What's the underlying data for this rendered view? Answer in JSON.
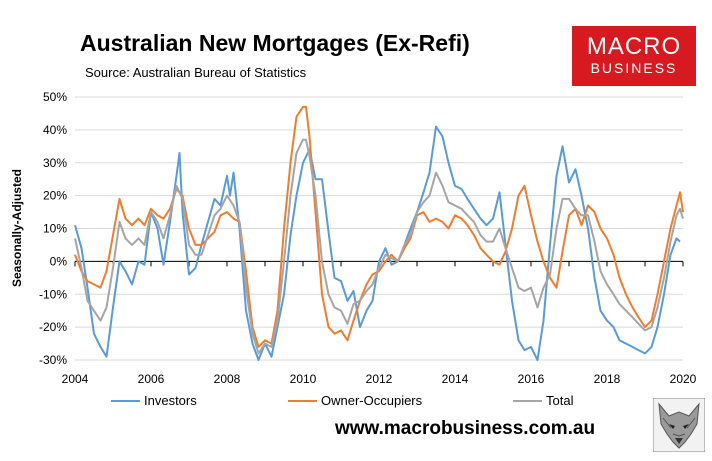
{
  "header": {
    "title": "Australian New Mortgages (Ex-Refi)",
    "subtitle": "Source: Australian Bureau of Statistics"
  },
  "logo": {
    "line1": "MACRO",
    "line2": "BUSINESS"
  },
  "footer": {
    "website": "www.macrobusiness.com.au"
  },
  "colors": {
    "investors": "#5b9bd5",
    "owner_occupiers": "#ed7d31",
    "total": "#a5a5a5",
    "logo_red": "#d71920"
  },
  "icons": {
    "wolf": "wolf-logo-icon"
  },
  "chart_data": {
    "type": "line",
    "title": "Australian New Mortgages (Ex-Refi)",
    "subtitle": "Source: Australian Bureau of Statistics",
    "xlabel": "",
    "ylabel": "Seasonally-Adjusted",
    "xlim": [
      2004,
      2020
    ],
    "ylim": [
      -30,
      50
    ],
    "x_ticks": [
      2004,
      2006,
      2008,
      2010,
      2012,
      2014,
      2016,
      2018,
      2020
    ],
    "y_ticks": [
      -30,
      -20,
      -10,
      0,
      10,
      20,
      30,
      40,
      50
    ],
    "x_tick_labels": [
      "2004",
      "2006",
      "2008",
      "2010",
      "2012",
      "2014",
      "2016",
      "2018",
      "2020"
    ],
    "y_tick_labels": [
      "-30%",
      "-20%",
      "-10%",
      "0%",
      "10%",
      "20%",
      "30%",
      "40%",
      "50%"
    ],
    "grid": "horizontal",
    "legend": "bottom",
    "series": [
      {
        "name": "Investors",
        "color": "#5b9bd5",
        "points": [
          [
            2004.0,
            11
          ],
          [
            2004.17,
            4
          ],
          [
            2004.33,
            -8
          ],
          [
            2004.5,
            -22
          ],
          [
            2004.67,
            -26
          ],
          [
            2004.83,
            -29
          ],
          [
            2005.0,
            -14
          ],
          [
            2005.17,
            0
          ],
          [
            2005.33,
            -3
          ],
          [
            2005.5,
            -7
          ],
          [
            2005.67,
            0
          ],
          [
            2005.83,
            -1
          ],
          [
            2006.0,
            15
          ],
          [
            2006.17,
            10
          ],
          [
            2006.33,
            -1
          ],
          [
            2006.5,
            12
          ],
          [
            2006.67,
            26
          ],
          [
            2006.75,
            33
          ],
          [
            2006.83,
            15
          ],
          [
            2007.0,
            -4
          ],
          [
            2007.17,
            -2
          ],
          [
            2007.33,
            5
          ],
          [
            2007.5,
            12
          ],
          [
            2007.67,
            19
          ],
          [
            2007.83,
            17
          ],
          [
            2008.0,
            26
          ],
          [
            2008.08,
            20
          ],
          [
            2008.17,
            27
          ],
          [
            2008.33,
            10
          ],
          [
            2008.5,
            -15
          ],
          [
            2008.67,
            -25
          ],
          [
            2008.83,
            -30
          ],
          [
            2009.0,
            -25
          ],
          [
            2009.17,
            -29
          ],
          [
            2009.33,
            -20
          ],
          [
            2009.5,
            -10
          ],
          [
            2009.67,
            8
          ],
          [
            2009.83,
            20
          ],
          [
            2010.0,
            30
          ],
          [
            2010.17,
            34
          ],
          [
            2010.33,
            25
          ],
          [
            2010.5,
            25
          ],
          [
            2010.67,
            9
          ],
          [
            2010.83,
            -5
          ],
          [
            2011.0,
            -6
          ],
          [
            2011.17,
            -12
          ],
          [
            2011.33,
            -9
          ],
          [
            2011.5,
            -20
          ],
          [
            2011.67,
            -15
          ],
          [
            2011.83,
            -12
          ],
          [
            2012.0,
            0
          ],
          [
            2012.17,
            4
          ],
          [
            2012.33,
            -1
          ],
          [
            2012.5,
            0
          ],
          [
            2012.67,
            5
          ],
          [
            2012.83,
            10
          ],
          [
            2013.0,
            15
          ],
          [
            2013.17,
            21
          ],
          [
            2013.33,
            27
          ],
          [
            2013.5,
            41
          ],
          [
            2013.67,
            38
          ],
          [
            2013.83,
            30
          ],
          [
            2014.0,
            23
          ],
          [
            2014.17,
            22
          ],
          [
            2014.33,
            19
          ],
          [
            2014.5,
            16
          ],
          [
            2014.67,
            13
          ],
          [
            2014.83,
            11
          ],
          [
            2015.0,
            13
          ],
          [
            2015.17,
            21
          ],
          [
            2015.33,
            5
          ],
          [
            2015.5,
            -12
          ],
          [
            2015.67,
            -24
          ],
          [
            2015.83,
            -27
          ],
          [
            2016.0,
            -26
          ],
          [
            2016.17,
            -30
          ],
          [
            2016.33,
            -18
          ],
          [
            2016.5,
            5
          ],
          [
            2016.67,
            26
          ],
          [
            2016.83,
            35
          ],
          [
            2017.0,
            24
          ],
          [
            2017.17,
            28
          ],
          [
            2017.33,
            20
          ],
          [
            2017.5,
            10
          ],
          [
            2017.67,
            -5
          ],
          [
            2017.83,
            -15
          ],
          [
            2018.0,
            -18
          ],
          [
            2018.17,
            -20
          ],
          [
            2018.33,
            -24
          ],
          [
            2018.5,
            -25
          ],
          [
            2018.67,
            -26
          ],
          [
            2018.83,
            -27
          ],
          [
            2019.0,
            -28
          ],
          [
            2019.17,
            -26
          ],
          [
            2019.33,
            -20
          ],
          [
            2019.5,
            -10
          ],
          [
            2019.67,
            2
          ],
          [
            2019.83,
            7
          ],
          [
            2019.92,
            6
          ]
        ]
      },
      {
        "name": "Owner-Occupiers",
        "color": "#ed7d31",
        "points": [
          [
            2004.0,
            2
          ],
          [
            2004.17,
            -3
          ],
          [
            2004.33,
            -6
          ],
          [
            2004.5,
            -7
          ],
          [
            2004.67,
            -8
          ],
          [
            2004.83,
            -3
          ],
          [
            2005.0,
            8
          ],
          [
            2005.17,
            19
          ],
          [
            2005.33,
            13
          ],
          [
            2005.5,
            11
          ],
          [
            2005.67,
            13
          ],
          [
            2005.83,
            11
          ],
          [
            2006.0,
            16
          ],
          [
            2006.17,
            14
          ],
          [
            2006.33,
            13
          ],
          [
            2006.5,
            16
          ],
          [
            2006.67,
            22
          ],
          [
            2006.83,
            20
          ],
          [
            2007.0,
            10
          ],
          [
            2007.17,
            5
          ],
          [
            2007.33,
            5
          ],
          [
            2007.5,
            7
          ],
          [
            2007.67,
            9
          ],
          [
            2007.83,
            14
          ],
          [
            2008.0,
            15
          ],
          [
            2008.17,
            13
          ],
          [
            2008.33,
            12
          ],
          [
            2008.5,
            -3
          ],
          [
            2008.67,
            -20
          ],
          [
            2008.83,
            -26
          ],
          [
            2009.0,
            -24
          ],
          [
            2009.17,
            -25
          ],
          [
            2009.33,
            -15
          ],
          [
            2009.5,
            10
          ],
          [
            2009.67,
            30
          ],
          [
            2009.83,
            44
          ],
          [
            2010.0,
            47
          ],
          [
            2010.08,
            47
          ],
          [
            2010.17,
            38
          ],
          [
            2010.33,
            15
          ],
          [
            2010.5,
            -10
          ],
          [
            2010.67,
            -20
          ],
          [
            2010.83,
            -22
          ],
          [
            2011.0,
            -21
          ],
          [
            2011.17,
            -24
          ],
          [
            2011.33,
            -18
          ],
          [
            2011.5,
            -12
          ],
          [
            2011.67,
            -7
          ],
          [
            2011.83,
            -4
          ],
          [
            2012.0,
            -3
          ],
          [
            2012.17,
            0
          ],
          [
            2012.33,
            2
          ],
          [
            2012.5,
            0
          ],
          [
            2012.67,
            4
          ],
          [
            2012.83,
            7
          ],
          [
            2013.0,
            14
          ],
          [
            2013.17,
            15
          ],
          [
            2013.33,
            12
          ],
          [
            2013.5,
            13
          ],
          [
            2013.67,
            12
          ],
          [
            2013.83,
            10
          ],
          [
            2014.0,
            14
          ],
          [
            2014.17,
            13
          ],
          [
            2014.33,
            11
          ],
          [
            2014.5,
            8
          ],
          [
            2014.67,
            4
          ],
          [
            2014.83,
            2
          ],
          [
            2015.0,
            0
          ],
          [
            2015.17,
            -1
          ],
          [
            2015.33,
            3
          ],
          [
            2015.5,
            10
          ],
          [
            2015.67,
            20
          ],
          [
            2015.83,
            23
          ],
          [
            2016.0,
            14
          ],
          [
            2016.17,
            6
          ],
          [
            2016.33,
            0
          ],
          [
            2016.5,
            -5
          ],
          [
            2016.67,
            -8
          ],
          [
            2016.83,
            3
          ],
          [
            2017.0,
            14
          ],
          [
            2017.17,
            16
          ],
          [
            2017.33,
            11
          ],
          [
            2017.5,
            17
          ],
          [
            2017.67,
            15
          ],
          [
            2017.83,
            10
          ],
          [
            2018.0,
            7
          ],
          [
            2018.17,
            2
          ],
          [
            2018.33,
            -5
          ],
          [
            2018.5,
            -10
          ],
          [
            2018.67,
            -14
          ],
          [
            2018.83,
            -17
          ],
          [
            2019.0,
            -20
          ],
          [
            2019.17,
            -18
          ],
          [
            2019.33,
            -10
          ],
          [
            2019.5,
            0
          ],
          [
            2019.67,
            10
          ],
          [
            2019.83,
            17
          ],
          [
            2019.92,
            21
          ],
          [
            2020.0,
            15
          ]
        ]
      },
      {
        "name": "Total",
        "color": "#a5a5a5",
        "points": [
          [
            2004.0,
            7
          ],
          [
            2004.17,
            -2
          ],
          [
            2004.33,
            -12
          ],
          [
            2004.5,
            -15
          ],
          [
            2004.67,
            -18
          ],
          [
            2004.83,
            -14
          ],
          [
            2005.0,
            -2
          ],
          [
            2005.17,
            12
          ],
          [
            2005.33,
            7
          ],
          [
            2005.5,
            5
          ],
          [
            2005.67,
            7
          ],
          [
            2005.83,
            5
          ],
          [
            2006.0,
            15
          ],
          [
            2006.17,
            12
          ],
          [
            2006.33,
            7
          ],
          [
            2006.5,
            14
          ],
          [
            2006.67,
            23
          ],
          [
            2006.83,
            19
          ],
          [
            2007.0,
            5
          ],
          [
            2007.17,
            2
          ],
          [
            2007.33,
            2
          ],
          [
            2007.5,
            8
          ],
          [
            2007.67,
            14
          ],
          [
            2007.83,
            16
          ],
          [
            2008.0,
            20
          ],
          [
            2008.17,
            17
          ],
          [
            2008.33,
            12
          ],
          [
            2008.5,
            -8
          ],
          [
            2008.67,
            -22
          ],
          [
            2008.83,
            -28
          ],
          [
            2009.0,
            -25
          ],
          [
            2009.17,
            -26
          ],
          [
            2009.33,
            -18
          ],
          [
            2009.5,
            0
          ],
          [
            2009.67,
            20
          ],
          [
            2009.83,
            33
          ],
          [
            2010.0,
            37
          ],
          [
            2010.08,
            37
          ],
          [
            2010.17,
            32
          ],
          [
            2010.33,
            20
          ],
          [
            2010.5,
            0
          ],
          [
            2010.67,
            -10
          ],
          [
            2010.83,
            -14
          ],
          [
            2011.0,
            -15
          ],
          [
            2011.17,
            -19
          ],
          [
            2011.33,
            -13
          ],
          [
            2011.5,
            -12
          ],
          [
            2011.67,
            -9
          ],
          [
            2011.83,
            -7
          ],
          [
            2012.0,
            -2
          ],
          [
            2012.17,
            2
          ],
          [
            2012.33,
            1
          ],
          [
            2012.5,
            0
          ],
          [
            2012.67,
            5
          ],
          [
            2012.83,
            8
          ],
          [
            2013.0,
            15
          ],
          [
            2013.17,
            18
          ],
          [
            2013.33,
            20
          ],
          [
            2013.5,
            27
          ],
          [
            2013.67,
            23
          ],
          [
            2013.83,
            18
          ],
          [
            2014.0,
            17
          ],
          [
            2014.17,
            16
          ],
          [
            2014.33,
            14
          ],
          [
            2014.5,
            12
          ],
          [
            2014.67,
            8
          ],
          [
            2014.83,
            6
          ],
          [
            2015.0,
            6
          ],
          [
            2015.17,
            10
          ],
          [
            2015.33,
            4
          ],
          [
            2015.5,
            -2
          ],
          [
            2015.67,
            -8
          ],
          [
            2015.83,
            -9
          ],
          [
            2016.0,
            -8
          ],
          [
            2016.17,
            -14
          ],
          [
            2016.33,
            -8
          ],
          [
            2016.5,
            -4
          ],
          [
            2016.67,
            10
          ],
          [
            2016.83,
            19
          ],
          [
            2017.0,
            19
          ],
          [
            2017.17,
            16
          ],
          [
            2017.33,
            14
          ],
          [
            2017.5,
            14
          ],
          [
            2017.67,
            6
          ],
          [
            2017.83,
            -3
          ],
          [
            2018.0,
            -7
          ],
          [
            2018.17,
            -10
          ],
          [
            2018.33,
            -13
          ],
          [
            2018.5,
            -15
          ],
          [
            2018.67,
            -17
          ],
          [
            2018.83,
            -19
          ],
          [
            2019.0,
            -21
          ],
          [
            2019.17,
            -20
          ],
          [
            2019.33,
            -14
          ],
          [
            2019.5,
            -5
          ],
          [
            2019.67,
            6
          ],
          [
            2019.83,
            14
          ],
          [
            2019.92,
            16
          ],
          [
            2020.0,
            13
          ]
        ]
      }
    ]
  }
}
